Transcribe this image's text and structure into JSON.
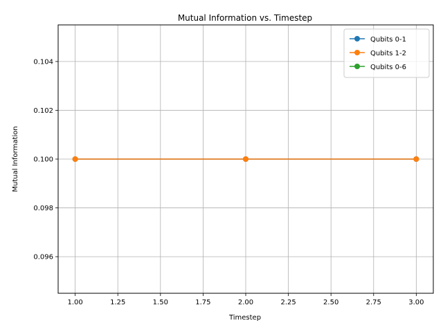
{
  "chart_data": {
    "type": "line",
    "title": "Mutual Information vs. Timestep",
    "xlabel": "Timestep",
    "ylabel": "Mutual Information",
    "xlim": [
      0.9,
      3.1
    ],
    "ylim": [
      0.0945,
      0.1055
    ],
    "xticks": [
      1.0,
      1.25,
      1.5,
      1.75,
      2.0,
      2.25,
      2.5,
      2.75,
      3.0
    ],
    "xtick_labels": [
      "1.00",
      "1.25",
      "1.50",
      "1.75",
      "2.00",
      "2.25",
      "2.50",
      "2.75",
      "3.00"
    ],
    "yticks": [
      0.096,
      0.098,
      0.1,
      0.102,
      0.104
    ],
    "ytick_labels": [
      "0.096",
      "0.098",
      "0.100",
      "0.102",
      "0.104"
    ],
    "grid": true,
    "legend_position": "top-right",
    "x": [
      1,
      2,
      3
    ],
    "series": [
      {
        "name": "Qubits 0-1",
        "values": [
          0.1,
          0.1,
          0.1
        ],
        "color": "#1f77b4"
      },
      {
        "name": "Qubits 1-2",
        "values": [
          0.1,
          0.1,
          0.1
        ],
        "color": "#ff7f0e"
      },
      {
        "name": "Qubits 0-6",
        "values": [
          null,
          null,
          null
        ],
        "color": "#2ca02c"
      }
    ]
  }
}
